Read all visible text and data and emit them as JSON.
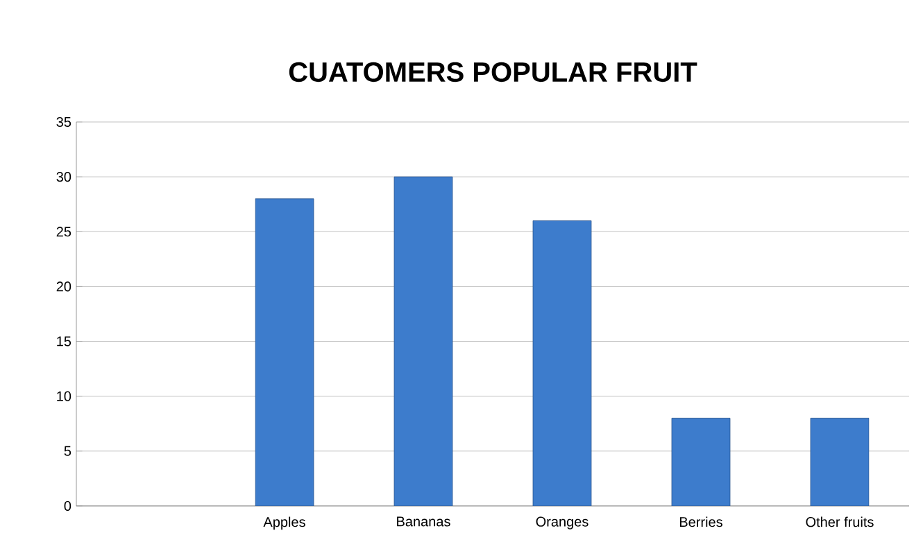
{
  "chart_data": {
    "type": "bar",
    "title": "CUATOMERS POPULAR FRUIT",
    "categories": [
      null,
      "Apples",
      "Bananas",
      "Oranges",
      "Berries",
      "Other fruits"
    ],
    "values": [
      null,
      28,
      30,
      26,
      8,
      8
    ],
    "color": "#3d7ccc",
    "ylim": [
      0,
      35
    ],
    "yticks": [
      0,
      5,
      10,
      15,
      20,
      25,
      30,
      35
    ],
    "grid": "y"
  }
}
